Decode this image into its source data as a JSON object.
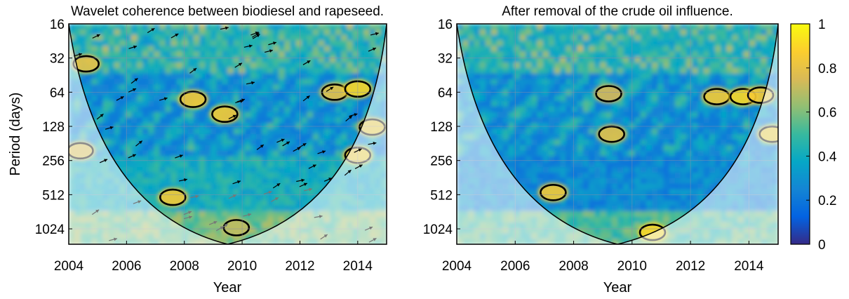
{
  "chart_data": [
    {
      "type": "heatmap",
      "title": "Wavelet coherence between biodiesel and rapeseed.",
      "xlabel": "Year",
      "ylabel": "Period (days)",
      "xlim": [
        2004,
        2015
      ],
      "ylim": [
        16,
        1400
      ],
      "yscale": "log2",
      "x_ticks": [
        2004,
        2006,
        2008,
        2010,
        2012,
        2014
      ],
      "y_ticks": [
        16,
        32,
        64,
        128,
        256,
        512,
        1024
      ],
      "grid": true,
      "cone_of_influence": true,
      "phase_arrows": true,
      "coi_apex": {
        "year": 2009.5,
        "period": 1400
      },
      "significant_regions": [
        {
          "year": 2007.6,
          "period": 540,
          "strength": 0.85
        },
        {
          "year": 2008.3,
          "period": 74,
          "strength": 0.85
        },
        {
          "year": 2009.4,
          "period": 100,
          "strength": 0.85
        },
        {
          "year": 2013.2,
          "period": 64,
          "strength": 0.8
        },
        {
          "year": 2014.0,
          "period": 230,
          "strength": 0.85
        },
        {
          "year": 2014.5,
          "period": 130,
          "strength": 0.85
        },
        {
          "year": 2014.0,
          "period": 60,
          "strength": 0.9
        },
        {
          "year": 2004.6,
          "period": 36,
          "strength": 0.8
        },
        {
          "year": 2004.4,
          "period": 210,
          "strength": 0.8
        },
        {
          "year": 2009.8,
          "period": 1000,
          "strength": 0.7
        }
      ]
    },
    {
      "type": "heatmap",
      "title": "After removal of the crude oil influence.",
      "xlabel": "Year",
      "ylabel": "",
      "xlim": [
        2004,
        2015
      ],
      "ylim": [
        16,
        1400
      ],
      "yscale": "log2",
      "x_ticks": [
        2004,
        2006,
        2008,
        2010,
        2012,
        2014
      ],
      "y_ticks": [
        16,
        32,
        64,
        128,
        256,
        512,
        1024
      ],
      "grid": true,
      "cone_of_influence": true,
      "phase_arrows": false,
      "coi_apex": {
        "year": 2009.5,
        "period": 1400
      },
      "significant_regions": [
        {
          "year": 2007.3,
          "period": 490,
          "strength": 0.85
        },
        {
          "year": 2012.9,
          "period": 70,
          "strength": 0.85
        },
        {
          "year": 2013.8,
          "period": 70,
          "strength": 0.9
        },
        {
          "year": 2014.4,
          "period": 68,
          "strength": 0.85
        },
        {
          "year": 2014.8,
          "period": 150,
          "strength": 0.85
        },
        {
          "year": 2009.3,
          "period": 150,
          "strength": 0.8
        },
        {
          "year": 2010.7,
          "period": 1100,
          "strength": 0.9
        },
        {
          "year": 2009.2,
          "period": 66,
          "strength": 0.75
        }
      ]
    }
  ],
  "colorbar": {
    "min": 0,
    "max": 1,
    "ticks": [
      "0",
      "0.2",
      "0.4",
      "0.6",
      "0.8",
      "1"
    ],
    "colors": [
      "#352a87",
      "#0363e1",
      "#1485d4",
      "#06a7c6",
      "#38b99e",
      "#92bf73",
      "#d9ba56",
      "#fcce2e",
      "#f9fb0e"
    ]
  }
}
